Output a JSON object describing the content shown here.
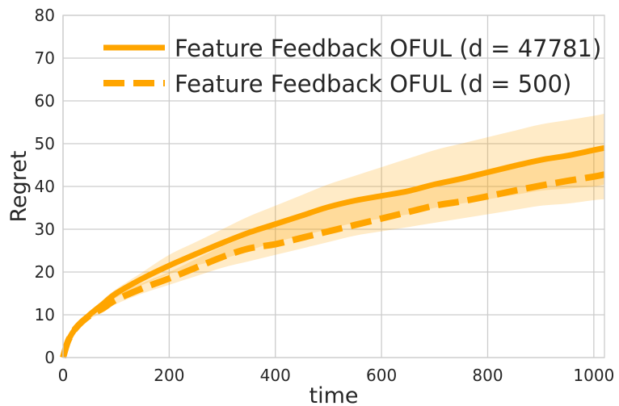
{
  "chart_data": {
    "type": "line",
    "title": "",
    "xlabel": "time",
    "ylabel": "Regret",
    "xlim": [
      0,
      1020
    ],
    "ylim": [
      0,
      80
    ],
    "xticks": [
      0,
      200,
      400,
      600,
      800,
      1000
    ],
    "yticks": [
      0,
      10,
      20,
      30,
      40,
      50,
      60,
      70,
      80
    ],
    "grid": true,
    "legend_position": "top-right",
    "color": "#ffa500",
    "band_color": "#ffa500",
    "x": [
      0,
      10,
      25,
      50,
      75,
      100,
      150,
      200,
      250,
      300,
      350,
      400,
      450,
      500,
      550,
      600,
      650,
      700,
      750,
      800,
      850,
      900,
      950,
      1000,
      1020
    ],
    "series": [
      {
        "name": "Feature Feedback OFUL (d = 47781)",
        "style": "solid",
        "values": [
          0,
          4,
          7,
          10,
          12.5,
          15,
          18.5,
          21.5,
          24.2,
          26.8,
          29.2,
          31.2,
          33.2,
          35.2,
          36.7,
          37.8,
          38.9,
          40.5,
          41.8,
          43.3,
          44.8,
          46.2,
          47.2,
          48.5,
          49
        ],
        "band_lower": [
          0,
          3.5,
          6.5,
          9.5,
          11.5,
          14,
          17,
          19.5,
          21.5,
          23,
          25,
          27,
          28.5,
          30,
          31.5,
          32.5,
          33.5,
          35,
          36,
          37,
          38,
          39,
          39.5,
          40,
          40.5
        ],
        "band_upper": [
          0,
          4.5,
          7.5,
          10.5,
          13.5,
          16,
          20,
          24,
          27,
          30,
          33,
          35.5,
          38,
          40.5,
          42.5,
          44.5,
          46.5,
          48.5,
          50,
          51.5,
          53,
          54.5,
          55.5,
          56.5,
          57
        ]
      },
      {
        "name": "Feature Feedback OFUL (d = 500)",
        "style": "dashed",
        "values": [
          0,
          4,
          7,
          9.8,
          11.5,
          13.5,
          16.2,
          18.5,
          21,
          23.5,
          25.5,
          26.5,
          28,
          29.5,
          31,
          32.5,
          34,
          35.5,
          36.5,
          37.7,
          39,
          40.2,
          41.3,
          42.3,
          42.8
        ],
        "band_lower": [
          0,
          3.5,
          6.5,
          9,
          10.5,
          12.5,
          15,
          17,
          19,
          21,
          22.5,
          24,
          25.5,
          27,
          28.5,
          29.5,
          30.5,
          31.5,
          32.5,
          33.5,
          34.5,
          35.5,
          36,
          36.8,
          37
        ],
        "band_upper": [
          0,
          4.5,
          7.5,
          10.5,
          12.5,
          15,
          17.5,
          20,
          23,
          26,
          28.5,
          31,
          33,
          35,
          36.5,
          38,
          39.5,
          41,
          42.5,
          44,
          45.5,
          46.5,
          47.5,
          48.5,
          49
        ]
      }
    ]
  }
}
